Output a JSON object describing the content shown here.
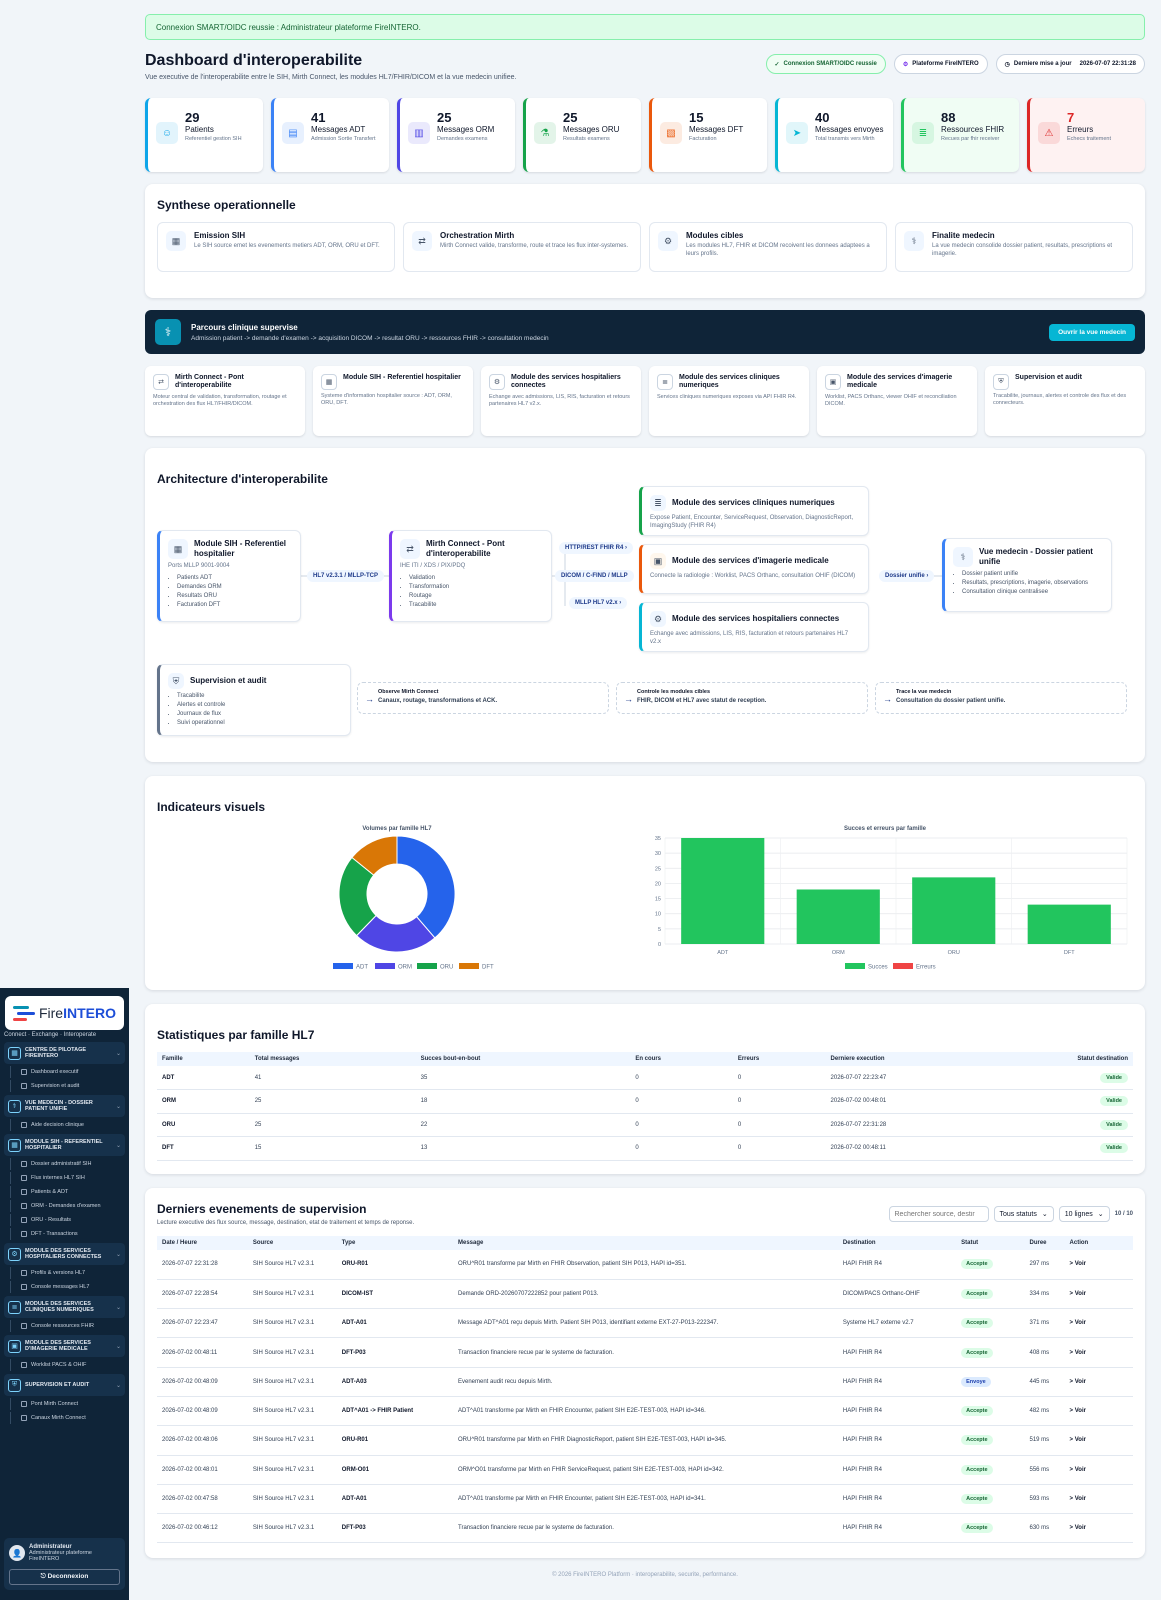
{
  "sidebar": {
    "brand_a": "Fire",
    "brand_b": "INTERO",
    "tagline": "Connect · Exchange · Interoperate",
    "groups": [
      {
        "title": "Centre de pilotage FireINTERO",
        "icon": "grid-icon",
        "items": [
          "Dashboard executif",
          "Supervision et audit"
        ]
      },
      {
        "title": "Vue medecin - Dossier patient unifie",
        "icon": "stethoscope-icon",
        "items": [
          "Aide decision clinique"
        ]
      },
      {
        "title": "Module SIH - Referentiel hospitalier",
        "icon": "hospital-icon",
        "items": [
          "Dossier administratif SIH",
          "Flux internes HL7 SIH",
          "Patients & ADT",
          "ORM - Demandes d'examen",
          "ORU - Resultats",
          "DFT - Transactions"
        ]
      },
      {
        "title": "Module des services hospitaliers connectes",
        "icon": "network-icon",
        "items": [
          "Profils & versions HL7",
          "Console messages HL7"
        ]
      },
      {
        "title": "Module des services cliniques numeriques",
        "icon": "database-icon",
        "items": [
          "Console ressources FHIR"
        ]
      },
      {
        "title": "Module des services d'imagerie medicale",
        "icon": "image-icon",
        "items": [
          "Worklist PACS & OHIF"
        ]
      },
      {
        "title": "Supervision et audit",
        "icon": "shield-icon",
        "items": [
          "Pont Mirth Connect",
          "Canaux Mirth Connect"
        ]
      }
    ],
    "user": {
      "name": "Administrateur",
      "role": "Administrateur plateforme FireINTERO",
      "logout": "Deconnexion"
    }
  },
  "alert": "Connexion SMART/OIDC reussie : Administrateur plateforme FireINTERO.",
  "header": {
    "title": "Dashboard d'interoperabilite",
    "subtitle": "Vue executive de l'interoperabilite entre le SIH, Mirth Connect, les modules HL7/FHIR/DICOM et la vue medecin unifiee.",
    "pill_auth": "Connexion SMART/OIDC reussie",
    "pill_platform": "Plateforme FireINTERO",
    "pill_update_label": "Derniere mise a jour",
    "pill_update_value": "2026-07-07 22:31:28"
  },
  "kpis": [
    {
      "value": "29",
      "label": "Patients",
      "sub": "Referentiel gestion SIH",
      "color": "#0ea5e9",
      "icon": "user-icon"
    },
    {
      "value": "41",
      "label": "Messages ADT",
      "sub": "Admission Sortie Transfert",
      "color": "#3b82f6",
      "icon": "clipboard-icon"
    },
    {
      "value": "25",
      "label": "Messages ORM",
      "sub": "Demandes examens",
      "color": "#4f46e5",
      "icon": "file-icon"
    },
    {
      "value": "25",
      "label": "Messages ORU",
      "sub": "Resultats examens",
      "color": "#16a34a",
      "icon": "flask-icon"
    },
    {
      "value": "15",
      "label": "Messages DFT",
      "sub": "Facturation",
      "color": "#ea580c",
      "icon": "receipt-icon"
    },
    {
      "value": "40",
      "label": "Messages envoyes",
      "sub": "Total transmis vers Mirth",
      "color": "#06b6d4",
      "icon": "send-icon"
    },
    {
      "value": "88",
      "label": "Ressources FHIR",
      "sub": "Recues par fhir receiver",
      "color": "#22c55e",
      "icon": "database-icon"
    },
    {
      "value": "7",
      "label": "Erreurs",
      "sub": "Echecs traitement",
      "color": "#dc2626",
      "icon": "warning-icon"
    }
  ],
  "synthese": {
    "title": "Synthese operationnelle",
    "items": [
      {
        "title": "Emission SIH",
        "text": "Le SIH source emet les evenements metiers ADT, ORM, ORU et DFT.",
        "icon": "hospital-icon"
      },
      {
        "title": "Orchestration Mirth",
        "text": "Mirth Connect valide, transforme, route et trace les flux inter-systemes.",
        "icon": "bridge-icon"
      },
      {
        "title": "Modules cibles",
        "text": "Les modules HL7, FHIR et DICOM recoivent les donnees adaptees a leurs profils.",
        "icon": "network-icon"
      },
      {
        "title": "Finalite medecin",
        "text": "La vue medecin consolide dossier patient, resultats, prescriptions et imagerie.",
        "icon": "stethoscope-icon"
      }
    ]
  },
  "banner": {
    "title": "Parcours clinique supervise",
    "text": "Admission patient -> demande d'examen -> acquisition DICOM -> resultat ORU -> ressources FHIR -> consultation medecin",
    "button": "Ouvrir la vue medecin"
  },
  "modules": [
    {
      "title": "Mirth Connect - Pont d'interoperabilite",
      "text": "Moteur central de validation, transformation, routage et orchestration des flux HL7/FHIR/DICOM.",
      "icon": "bridge-icon"
    },
    {
      "title": "Module SIH - Referentiel hospitalier",
      "text": "Systeme d'information hospitalier source : ADT, ORM, ORU, DFT.",
      "icon": "hospital-icon"
    },
    {
      "title": "Module des services hospitaliers connectes",
      "text": "Echange avec admissions, LIS, RIS, facturation et retours partenaires HL7 v2.x.",
      "icon": "network-icon"
    },
    {
      "title": "Module des services cliniques numeriques",
      "text": "Services cliniques numeriques exposes via API FHIR R4.",
      "icon": "database-icon"
    },
    {
      "title": "Module des services d'imagerie medicale",
      "text": "Worklist, PACS Orthanc, viewer OHIF et reconciliation DICOM.",
      "icon": "image-icon"
    },
    {
      "title": "Supervision et audit",
      "text": "Tracabilite, journaux, alertes et controle des flux et des connecteurs.",
      "icon": "shield-icon"
    }
  ],
  "architecture": {
    "title": "Architecture d'interoperabilite",
    "sih": {
      "title": "Module SIH - Referentiel hospitalier",
      "sub": "Ports MLLP 9001-9004",
      "items": [
        "Patients ADT",
        "Demandes ORM",
        "Resultats ORU",
        "Facturation DFT"
      ]
    },
    "mirth": {
      "title": "Mirth Connect - Pont d'interoperabilite",
      "sub": "IHE ITI / XDS / PIX/PDQ",
      "items": [
        "Validation",
        "Transformation",
        "Routage",
        "Tracabilite"
      ]
    },
    "link_sih_mirth": "HL7 v2.3.1 / MLLP-TCP",
    "link_fhir": "HTTP/REST FHIR R4",
    "link_dicom": "DICOM / C-FIND / MLLP",
    "link_hl7": "MLLP HL7 v2.x",
    "clin": {
      "title": "Module des services cliniques numeriques",
      "sub": "Expose Patient, Encounter, ServiceRequest, Observation, DiagnosticReport, ImagingStudy (FHIR R4)"
    },
    "img": {
      "title": "Module des services d'imagerie medicale",
      "sub": "Connecte la radiologie : Worklist, PACS Orthanc, consultation OHIF (DICOM)"
    },
    "hosp": {
      "title": "Module des services hospitaliers connectes",
      "sub": "Echange avec admissions, LIS, RIS, facturation et retours partenaires HL7 v2.x"
    },
    "link_doc": "Dossier unifie",
    "doc": {
      "title": "Vue medecin - Dossier patient unifie",
      "items": [
        "Dossier patient unifie",
        "Resultats, prescriptions, imagerie, observations",
        "Consultation clinique centralisee"
      ]
    },
    "sup": {
      "title": "Supervision et audit",
      "items": [
        "Tracabilite",
        "Alertes et controle",
        "Journaux de flux",
        "Suivi operationnel"
      ]
    },
    "notes": [
      {
        "title": "Observe Mirth Connect",
        "sub": "Canaux, routage, transformations et ACK."
      },
      {
        "title": "Controle les modules cibles",
        "sub": "FHIR, DICOM et HL7 avec statut de reception."
      },
      {
        "title": "Trace la vue medecin",
        "sub": "Consultation du dossier patient unifie."
      }
    ]
  },
  "indicators": {
    "title": "Indicateurs visuels"
  },
  "chart_data": [
    {
      "type": "pie",
      "title": "Volumes par famille HL7",
      "categories": [
        "ADT",
        "ORM",
        "ORU",
        "DFT"
      ],
      "values": [
        41,
        25,
        25,
        15
      ],
      "colors": [
        "#2563eb",
        "#4f46e5",
        "#16a34a",
        "#d97706"
      ],
      "legend": "bottom"
    },
    {
      "type": "bar",
      "title": "Succes et erreurs par famille",
      "categories": [
        "ADT",
        "ORM",
        "ORU",
        "DFT"
      ],
      "series": [
        {
          "name": "Succes",
          "values": [
            35,
            18,
            22,
            13
          ],
          "color": "#22c55e"
        },
        {
          "name": "Erreurs",
          "values": [
            0,
            0,
            0,
            0
          ],
          "color": "#ef4444"
        }
      ],
      "ylim": [
        0,
        35
      ],
      "yticks": [
        "0",
        "5",
        "10",
        "15",
        "20",
        "25",
        "30",
        "35"
      ],
      "grid": true,
      "legend": "bottom"
    }
  ],
  "families": {
    "title": "Statistiques par famille HL7",
    "columns": [
      "Famille",
      "Total messages",
      "Succes bout-en-bout",
      "En cours",
      "Erreurs",
      "Derniere execution",
      "Statut destination"
    ],
    "rows": [
      [
        "ADT",
        "41",
        "35",
        "0",
        "0",
        "2026-07-07 22:23:47",
        "Valide"
      ],
      [
        "ORM",
        "25",
        "18",
        "0",
        "0",
        "2026-07-02 00:48:01",
        "Valide"
      ],
      [
        "ORU",
        "25",
        "22",
        "0",
        "0",
        "2026-07-07 22:31:28",
        "Valide"
      ],
      [
        "DFT",
        "15",
        "13",
        "0",
        "0",
        "2026-07-02 00:48:11",
        "Valide"
      ]
    ]
  },
  "events": {
    "title": "Derniers evenements de supervision",
    "subtitle": "Lecture executive des flux source, message, destination, etat de traitement et temps de reponse.",
    "search_placeholder": "Rechercher source, destir",
    "status_filter": "Tous statuts",
    "rows_select": "10 lignes",
    "count": "10 / 10",
    "columns": [
      "Date / Heure",
      "Source",
      "Type",
      "Message",
      "Destination",
      "Statut",
      "Duree",
      "Action"
    ],
    "rows": [
      [
        "2026-07-07 22:31:28",
        "SIH Source HL7 v2.3.1",
        "ORU-R01",
        "ORU^R01 transforme par Mirth en FHIR Observation, patient SIH P013, HAPI id=351.",
        "HAPI FHIR R4",
        "Accepte",
        "297 ms",
        "> Voir"
      ],
      [
        "2026-07-07 22:28:54",
        "SIH Source HL7 v2.3.1",
        "DICOM-IST",
        "Demande ORD-20260707222852 pour patient P013.",
        "DICOM/PACS Orthanc-OHIF",
        "Accepte",
        "334 ms",
        "> Voir"
      ],
      [
        "2026-07-07 22:23:47",
        "SIH Source HL7 v2.3.1",
        "ADT-A01",
        "Message ADT^A01 reçu depuis Mirth. Patient SIH P013, identifiant externe EXT-27-P013-222347.",
        "Systeme HL7 externe v2.7",
        "Accepte",
        "371 ms",
        "> Voir"
      ],
      [
        "2026-07-02 00:48:11",
        "SIH Source HL7 v2.3.1",
        "DFT-P03",
        "Transaction financiere recue par le systeme de facturation.",
        "HAPI FHIR R4",
        "Accepte",
        "408 ms",
        "> Voir"
      ],
      [
        "2026-07-02 00:48:09",
        "SIH Source HL7 v2.3.1",
        "ADT-A03",
        "Evenement audit recu depuis Mirth.",
        "HAPI FHIR R4",
        "Envoye",
        "445 ms",
        "> Voir"
      ],
      [
        "2026-07-02 00:48:09",
        "SIH Source HL7 v2.3.1",
        "ADT^A01 -> FHIR Patient",
        "ADT^A01 transforme par Mirth en FHIR Encounter, patient SIH E2E-TEST-003, HAPI id=346.",
        "HAPI FHIR R4",
        "Accepte",
        "482 ms",
        "> Voir"
      ],
      [
        "2026-07-02 00:48:06",
        "SIH Source HL7 v2.3.1",
        "ORU-R01",
        "ORU^R01 transforme par Mirth en FHIR DiagnosticReport, patient SIH E2E-TEST-003, HAPI id=345.",
        "HAPI FHIR R4",
        "Accepte",
        "519 ms",
        "> Voir"
      ],
      [
        "2026-07-02 00:48:01",
        "SIH Source HL7 v2.3.1",
        "ORM-O01",
        "ORM^O01 transforme par Mirth en FHIR ServiceRequest, patient SIH E2E-TEST-003, HAPI id=342.",
        "HAPI FHIR R4",
        "Accepte",
        "556 ms",
        "> Voir"
      ],
      [
        "2026-07-02 00:47:58",
        "SIH Source HL7 v2.3.1",
        "ADT-A01",
        "ADT^A01 transforme par Mirth en FHIR Encounter, patient SIH E2E-TEST-003, HAPI id=341.",
        "HAPI FHIR R4",
        "Accepte",
        "593 ms",
        "> Voir"
      ],
      [
        "2026-07-02 00:46:12",
        "SIH Source HL7 v2.3.1",
        "DFT-P03",
        "Transaction financiere recue par le systeme de facturation.",
        "HAPI FHIR R4",
        "Accepte",
        "630 ms",
        "> Voir"
      ]
    ]
  },
  "footer": "© 2026 FireINTERO Platform · interoperabilite, securite, performance."
}
